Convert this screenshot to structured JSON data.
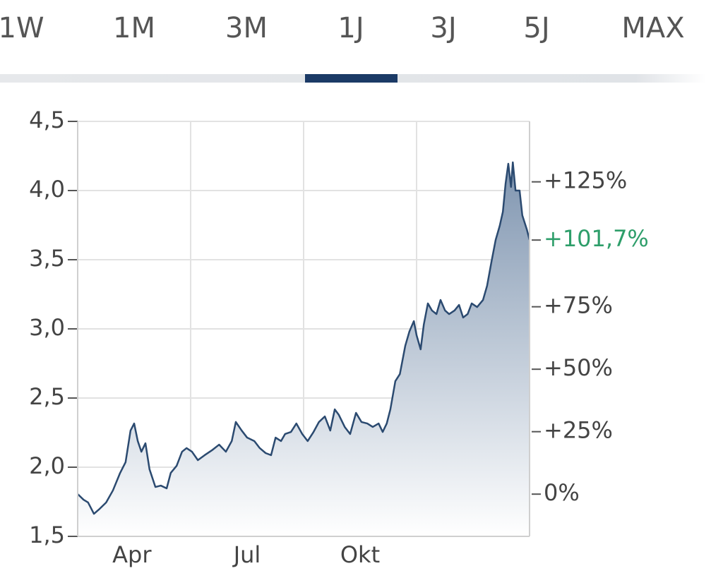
{
  "tabs": [
    "1W",
    "1M",
    "3M",
    "1J",
    "3J",
    "5J",
    "MAX"
  ],
  "active_tab": 3,
  "chart_data": {
    "type": "area",
    "x": [
      0,
      1.3,
      2.3,
      3.6,
      4.7,
      6.3,
      7.8,
      9.4,
      10.6,
      11.7,
      12.5,
      13.3,
      14.1,
      15,
      15.9,
      17.2,
      18.4,
      19.7,
      20.6,
      21.9,
      23.1,
      24.1,
      25.3,
      26.6,
      28.1,
      29.7,
      31.3,
      32.8,
      34.1,
      35,
      36.3,
      37.5,
      39.1,
      40.3,
      41.6,
      42.8,
      43.8,
      45,
      45.9,
      47.2,
      48.4,
      49.7,
      50.9,
      52.2,
      53.4,
      54.7,
      55.9,
      56.9,
      57.8,
      59.1,
      60.3,
      61.6,
      62.8,
      64.1,
      65.3,
      66.6,
      67.5,
      68.4,
      69.2,
      70.3,
      71.3,
      72.5,
      73.4,
      74.4,
      75,
      75.9,
      76.6,
      77.5,
      78.4,
      79.4,
      80.3,
      81.3,
      82.2,
      83.4,
      84.4,
      85.3,
      86.3,
      87.2,
      88.4,
      89.7,
      90.6,
      91.6,
      92.5,
      93.4,
      94.1,
      94.7,
      95.3,
      95.9,
      96.3,
      96.9,
      97.8,
      98.4,
      99.4,
      100
    ],
    "values": [
      1.806,
      1.765,
      1.745,
      1.663,
      1.694,
      1.745,
      1.832,
      1.959,
      2.036,
      2.265,
      2.316,
      2.189,
      2.112,
      2.173,
      1.985,
      1.857,
      1.867,
      1.847,
      1.959,
      2.01,
      2.112,
      2.138,
      2.112,
      2.051,
      2.087,
      2.122,
      2.163,
      2.112,
      2.189,
      2.327,
      2.265,
      2.214,
      2.189,
      2.138,
      2.102,
      2.087,
      2.214,
      2.189,
      2.24,
      2.255,
      2.316,
      2.24,
      2.189,
      2.255,
      2.327,
      2.367,
      2.265,
      2.418,
      2.378,
      2.291,
      2.24,
      2.393,
      2.327,
      2.316,
      2.291,
      2.316,
      2.255,
      2.316,
      2.418,
      2.622,
      2.673,
      2.878,
      2.98,
      3.056,
      2.954,
      2.852,
      3.031,
      3.184,
      3.133,
      3.107,
      3.209,
      3.133,
      3.107,
      3.133,
      3.173,
      3.082,
      3.107,
      3.184,
      3.158,
      3.209,
      3.311,
      3.49,
      3.643,
      3.745,
      3.847,
      4.051,
      4.194,
      4.026,
      4.204,
      4.0,
      4.0,
      3.821,
      3.719,
      3.643
    ],
    "color": "#2b4a70",
    "xlim": [
      0,
      100
    ],
    "xticks": [
      {
        "value": 12,
        "label": "Apr"
      },
      {
        "value": 37.5,
        "label": "Jul"
      },
      {
        "value": 62.5,
        "label": "Okt"
      }
    ],
    "ylim": [
      1.5,
      4.5
    ],
    "yticks": [
      {
        "value": 1.5,
        "label": "1,5"
      },
      {
        "value": 2.0,
        "label": "2,0"
      },
      {
        "value": 2.5,
        "label": "2,5"
      },
      {
        "value": 3.0,
        "label": "3,0"
      },
      {
        "value": 3.5,
        "label": "3,5"
      },
      {
        "value": 4.0,
        "label": "4,0"
      },
      {
        "value": 4.5,
        "label": "4,5"
      }
    ],
    "y2lim": [
      -16.9,
      149.2
    ],
    "y2ticks": [
      {
        "value": 0,
        "label": "0%"
      },
      {
        "value": 25,
        "label": "+25%"
      },
      {
        "value": 50,
        "label": "+50%"
      },
      {
        "value": 75,
        "label": "+75%"
      },
      {
        "value": 125,
        "label": "+125%"
      }
    ],
    "annotation": {
      "value": 101.7,
      "label": "+101,7%",
      "color": "#2e9e6a"
    },
    "grid": true
  }
}
